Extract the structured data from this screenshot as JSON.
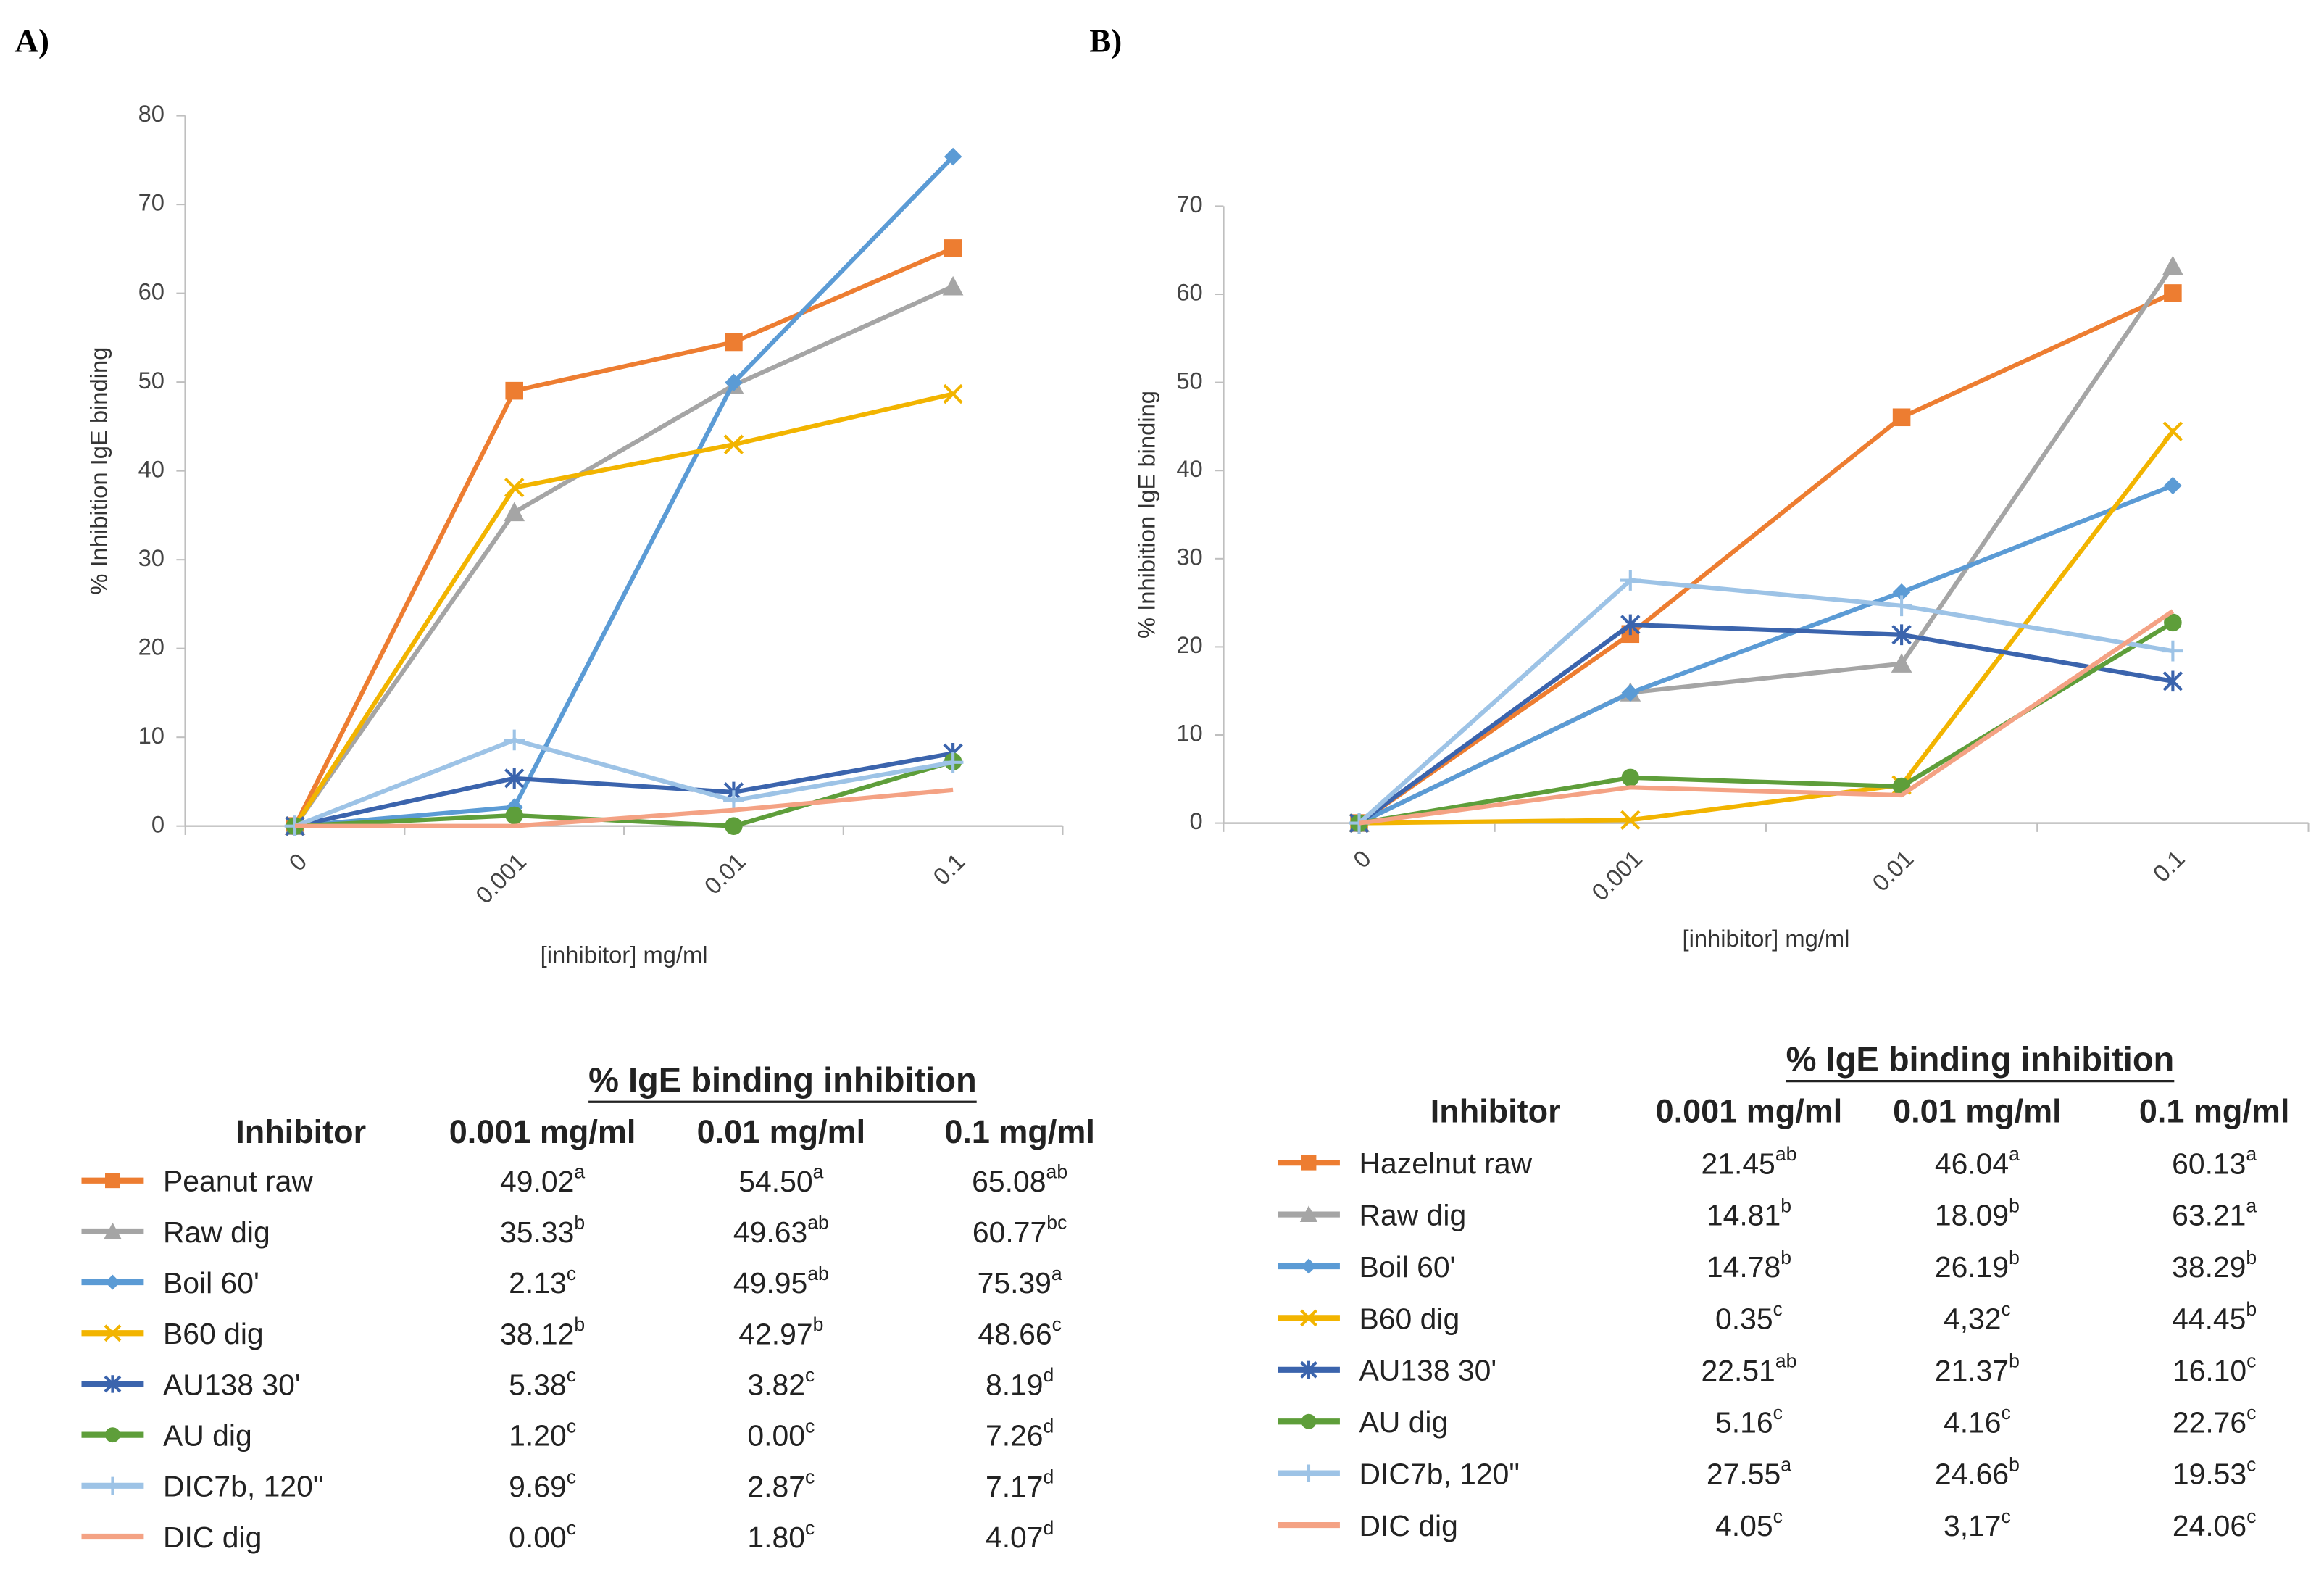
{
  "chart_data": [
    {
      "type": "line",
      "label": "A)",
      "y_label": "% Inhibition IgE binding",
      "x_label": "[inhibitor] mg/ml",
      "categories": [
        "0",
        "0.001",
        "0.01",
        "0.1"
      ],
      "ylim": [
        0,
        80
      ],
      "yticks": [
        0,
        10,
        20,
        30,
        40,
        50,
        60,
        70,
        80
      ],
      "grid": false,
      "series": [
        {
          "name": "Peanut raw",
          "color": "#ED7D31",
          "marker": "square",
          "values": [
            0,
            49.02,
            54.5,
            65.08
          ]
        },
        {
          "name": "Raw dig",
          "color": "#A5A5A5",
          "marker": "triangle",
          "values": [
            0,
            35.33,
            49.63,
            60.77
          ]
        },
        {
          "name": "Boil 60'",
          "color": "#5B9BD5",
          "marker": "diamond",
          "values": [
            0,
            2.13,
            49.95,
            75.39
          ]
        },
        {
          "name": "B60 dig",
          "color": "#F2B400",
          "marker": "x",
          "values": [
            0,
            38.12,
            42.97,
            48.66
          ]
        },
        {
          "name": "AU138 30'",
          "color": "#3B64AD",
          "marker": "star",
          "values": [
            0,
            5.38,
            3.82,
            8.19
          ]
        },
        {
          "name": "AU dig",
          "color": "#5E9E3A",
          "marker": "circle",
          "values": [
            0,
            1.2,
            0.0,
            7.26
          ]
        },
        {
          "name": "DIC7b, 120\"",
          "color": "#9DC3E6",
          "marker": "plus",
          "values": [
            0,
            9.69,
            2.87,
            7.17
          ]
        },
        {
          "name": "DIC dig",
          "color": "#F4A284",
          "marker": "none",
          "values": [
            0,
            0.0,
            1.8,
            4.07
          ]
        }
      ]
    },
    {
      "type": "line",
      "label": "B)",
      "y_label": "% Inhibition IgE binding",
      "x_label": "[inhibitor] mg/ml",
      "categories": [
        "0",
        "0.001",
        "0.01",
        "0.1"
      ],
      "ylim": [
        0,
        70
      ],
      "yticks": [
        0,
        10,
        20,
        30,
        40,
        50,
        60,
        70
      ],
      "grid": false,
      "series": [
        {
          "name": "Hazelnut raw",
          "color": "#ED7D31",
          "marker": "square",
          "values": [
            0,
            21.45,
            46.04,
            60.13
          ]
        },
        {
          "name": "Raw dig",
          "color": "#A5A5A5",
          "marker": "triangle",
          "values": [
            0,
            14.81,
            18.09,
            63.21
          ]
        },
        {
          "name": "Boil 60'",
          "color": "#5B9BD5",
          "marker": "diamond",
          "values": [
            0,
            14.78,
            26.19,
            38.29
          ]
        },
        {
          "name": "B60 dig",
          "color": "#F2B400",
          "marker": "x",
          "values": [
            0,
            0.35,
            4.32,
            44.45
          ]
        },
        {
          "name": "AU138 30'",
          "color": "#3B64AD",
          "marker": "star",
          "values": [
            0,
            22.51,
            21.37,
            16.1
          ]
        },
        {
          "name": "AU dig",
          "color": "#5E9E3A",
          "marker": "circle",
          "values": [
            0,
            5.16,
            4.16,
            22.76
          ]
        },
        {
          "name": "DIC7b, 120\"",
          "color": "#9DC3E6",
          "marker": "plus",
          "values": [
            0,
            27.55,
            24.66,
            19.53
          ]
        },
        {
          "name": "DIC dig",
          "color": "#F4A284",
          "marker": "none",
          "values": [
            0,
            4.05,
            3.17,
            24.06
          ]
        }
      ]
    }
  ],
  "tables": [
    {
      "title": "% IgE binding inhibition",
      "header": [
        "Inhibitor",
        "0.001 mg/ml",
        "0.01 mg/ml",
        "0.1 mg/ml"
      ],
      "rows": [
        {
          "cells": [
            "49.02",
            "54.50",
            "65.08"
          ],
          "superscripts": [
            "a",
            "a",
            "ab"
          ]
        },
        {
          "cells": [
            "35.33",
            "49.63",
            "60.77"
          ],
          "superscripts": [
            "b",
            "ab",
            "bc"
          ]
        },
        {
          "cells": [
            "2.13",
            "49.95",
            "75.39"
          ],
          "superscripts": [
            "c",
            "ab",
            "a"
          ]
        },
        {
          "cells": [
            "38.12",
            "42.97",
            "48.66"
          ],
          "superscripts": [
            "b",
            "b",
            "c"
          ]
        },
        {
          "cells": [
            "5.38",
            "3.82",
            "8.19"
          ],
          "superscripts": [
            "c",
            "c",
            "d"
          ]
        },
        {
          "cells": [
            "1.20",
            "0.00",
            "7.26"
          ],
          "superscripts": [
            "c",
            "c",
            "d"
          ]
        },
        {
          "cells": [
            "9.69",
            "2.87",
            "7.17"
          ],
          "superscripts": [
            "c",
            "c",
            "d"
          ]
        },
        {
          "cells": [
            "0.00",
            "1.80",
            "4.07"
          ],
          "superscripts": [
            "c",
            "c",
            "d"
          ]
        }
      ]
    },
    {
      "title": "% IgE binding inhibition",
      "header": [
        "Inhibitor",
        "0.001 mg/ml",
        "0.01 mg/ml",
        "0.1 mg/ml"
      ],
      "rows": [
        {
          "cells": [
            "21.45",
            "46.04",
            "60.13"
          ],
          "superscripts": [
            "ab",
            "a",
            "a"
          ]
        },
        {
          "cells": [
            "14.81",
            "18.09",
            "63.21"
          ],
          "superscripts": [
            "b",
            "b",
            "a"
          ]
        },
        {
          "cells": [
            "14.78",
            "26.19",
            "38.29"
          ],
          "superscripts": [
            "b",
            "b",
            "b"
          ]
        },
        {
          "cells": [
            "0.35",
            "4,32",
            "44.45"
          ],
          "superscripts": [
            "c",
            "c",
            "b"
          ]
        },
        {
          "cells": [
            "22.51",
            "21.37",
            "16.10"
          ],
          "superscripts": [
            "ab",
            "b",
            "c"
          ]
        },
        {
          "cells": [
            "5.16",
            "4.16",
            "22.76"
          ],
          "superscripts": [
            "c",
            "c",
            "c"
          ]
        },
        {
          "cells": [
            "27.55",
            "24.66",
            "19.53"
          ],
          "superscripts": [
            "a",
            "b",
            "c"
          ]
        },
        {
          "cells": [
            "4.05",
            "3,17",
            "24.06"
          ],
          "superscripts": [
            "c",
            "c",
            "c"
          ]
        }
      ]
    }
  ]
}
